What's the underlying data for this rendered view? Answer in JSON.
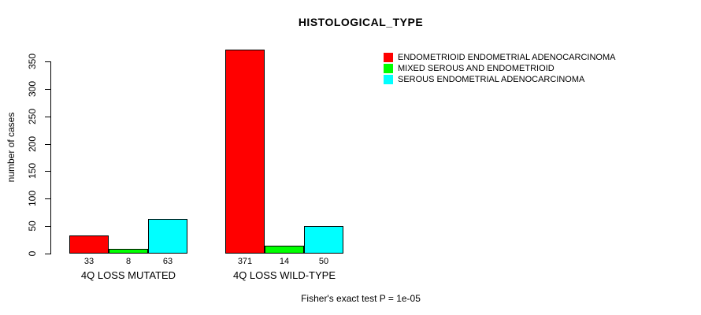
{
  "title": "HISTOLOGICAL_TYPE",
  "y_axis_label": "number of cases",
  "footer": "Fisher's exact test P = 1e-05",
  "chart_data": {
    "type": "bar",
    "title": "HISTOLOGICAL_TYPE",
    "xlabel": "",
    "ylabel": "number of cases",
    "categories": [
      "4Q LOSS MUTATED",
      "4Q LOSS WILD-TYPE"
    ],
    "series": [
      {
        "name": "ENDOMETRIOID ENDOMETRIAL ADENOCARCINOMA",
        "color": "#FF0000",
        "values": [
          33,
          371
        ]
      },
      {
        "name": "MIXED SEROUS AND ENDOMETRIOID",
        "color": "#00FF00",
        "values": [
          8,
          14
        ]
      },
      {
        "name": "SEROUS ENDOMETRIAL ADENOCARCINOMA",
        "color": "#00FFFF",
        "values": [
          63,
          50
        ]
      }
    ],
    "bar_value_labels": [
      [
        33,
        8,
        63
      ],
      [
        371,
        14,
        50
      ]
    ],
    "yticks": [
      0,
      50,
      100,
      150,
      200,
      250,
      300,
      350
    ],
    "ylim": [
      0,
      350
    ],
    "grid": false,
    "legend_position": "top-right",
    "annotation": "Fisher's exact test P = 1e-05"
  }
}
